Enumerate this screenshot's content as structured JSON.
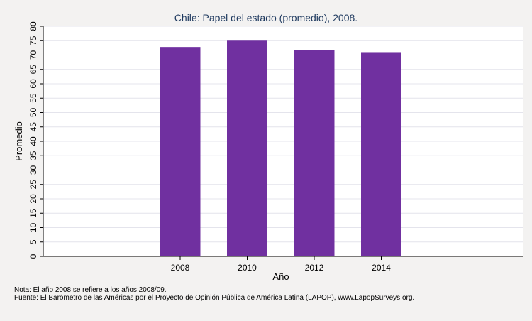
{
  "chart_data": {
    "type": "bar",
    "title": "Chile: Papel del estado (promedio), 2008.",
    "xlabel": "Año",
    "ylabel": "Promedio",
    "categories": [
      "2008",
      "2010",
      "2012",
      "2014"
    ],
    "values": [
      72.8,
      75.0,
      71.8,
      71.0
    ],
    "ylim": [
      0,
      80
    ],
    "yticks": [
      "0",
      "5",
      "10",
      "15",
      "20",
      "25",
      "30",
      "35",
      "40",
      "45",
      "50",
      "55",
      "60",
      "65",
      "70",
      "75",
      "80"
    ],
    "grid": true,
    "colors": {
      "bar": "#7030a0",
      "grid": "#e4e4ec",
      "plot_bg": "#ffffff"
    }
  },
  "notes": [
    "Nota: El año 2008 se refiere a los años 2008/09.",
    "Fuente: El Barómetro de las Américas por el Proyecto de Opinión Pública de América Latina (LAPOP), www.LapopSurveys.org."
  ]
}
